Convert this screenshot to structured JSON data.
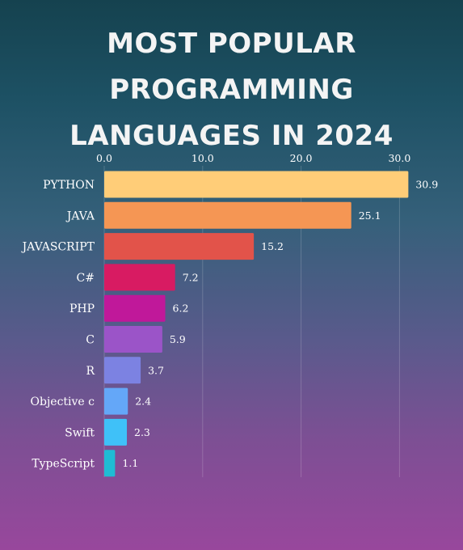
{
  "title_line1": "MOST POPULAR PROGRAMMING",
  "title_line2": "LANGUAGES IN 2024",
  "chart_data": {
    "type": "bar",
    "orientation": "horizontal",
    "categories": [
      "PYTHON",
      "JAVA",
      "JAVASCRIPT",
      "C#",
      "PHP",
      "C",
      "R",
      "Objective c",
      "Swift",
      "TypeScript"
    ],
    "values": [
      30.9,
      25.1,
      15.2,
      7.2,
      6.2,
      5.9,
      3.7,
      2.4,
      2.3,
      1.1
    ],
    "value_labels": [
      "30.9",
      "25.1",
      "15.2",
      "7.2",
      "6.2",
      "5.9",
      "3.7",
      "2.4",
      "2.3",
      "1.1"
    ],
    "colors": [
      "#ffcd78",
      "#f59654",
      "#e2534a",
      "#d81b62",
      "#c0189a",
      "#9b54c8",
      "#7c82e2",
      "#64a7f8",
      "#3fc1f8",
      "#1fbcd4"
    ],
    "xticks": [
      0,
      10,
      20,
      30
    ],
    "xtick_labels": [
      "0.0",
      "10.0",
      "20.0",
      "30.0"
    ],
    "xlim": [
      0,
      31
    ],
    "xaxis_position": "top",
    "grid": true,
    "title": "",
    "xlabel": "",
    "ylabel": ""
  }
}
